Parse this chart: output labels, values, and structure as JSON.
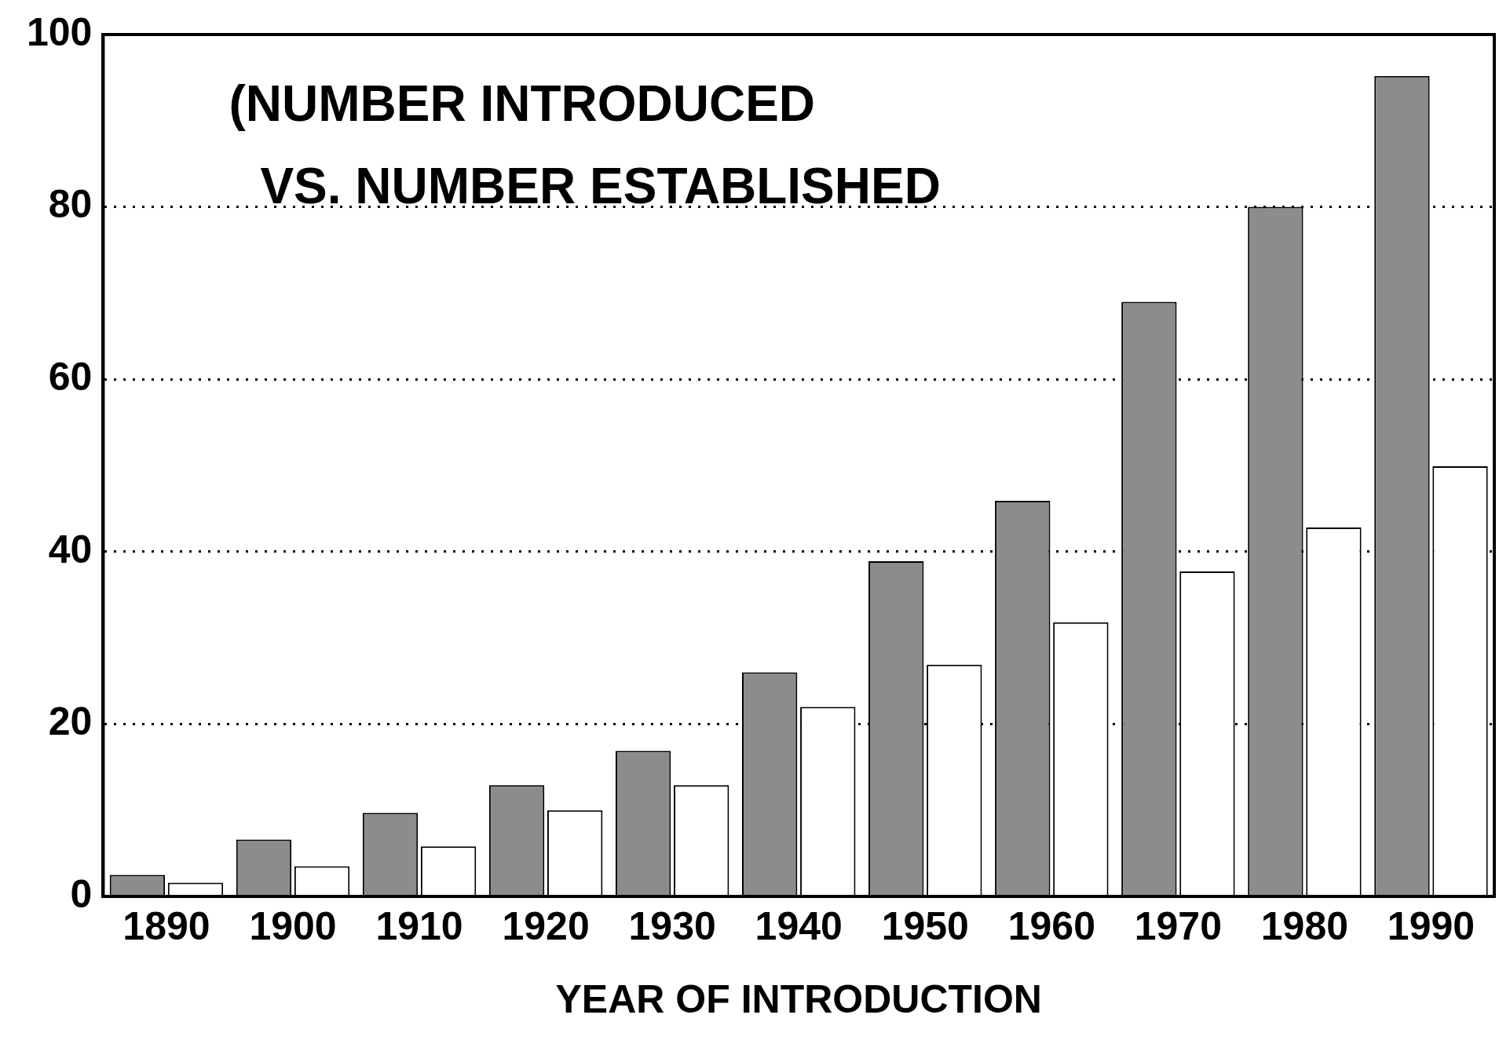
{
  "chart_data": {
    "type": "bar",
    "xlabel": "YEAR OF INTRODUCTION",
    "annotations": [
      "(NUMBER INTRODUCED\nVS. NUMBER ESTABLISHED"
    ],
    "categories": [
      "1890",
      "1900",
      "1910",
      "1920",
      "1930",
      "1940",
      "1950",
      "1960",
      "1970",
      "1980",
      "1990"
    ],
    "series": [
      {
        "color": "#8c8c8c",
        "values": [
          2.5,
          6.6,
          9.7,
          12.9,
          16.9,
          26,
          38.9,
          45.9,
          69,
          80,
          95.2
        ]
      },
      {
        "color": "#ffffff",
        "values": [
          1.6,
          3.5,
          5.8,
          10,
          12.9,
          22,
          26.9,
          31.8,
          37.7,
          42.8,
          49.9
        ]
      }
    ],
    "ylim": [
      0,
      100
    ],
    "yticks": [
      0,
      20,
      40,
      60,
      80,
      100
    ],
    "grid": "y",
    "legend": false
  }
}
